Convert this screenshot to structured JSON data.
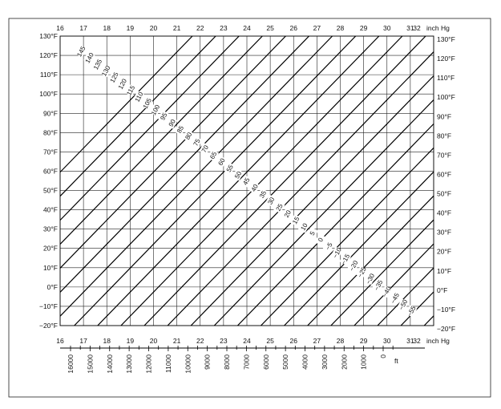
{
  "chart_data": {
    "type": "line",
    "title": "",
    "pressure_axis": {
      "unit": "inch Hg",
      "range": [
        16,
        32
      ],
      "ticks": [
        "16",
        "17",
        "18",
        "19",
        "20",
        "21",
        "22",
        "23",
        "24",
        "25",
        "26",
        "27",
        "28",
        "29",
        "30",
        "31",
        "32"
      ]
    },
    "temperature_axis": {
      "unit": "°F",
      "range": [
        -20,
        130
      ],
      "ticks": [
        "130°F",
        "120°F",
        "110°F",
        "100°F",
        "90°F",
        "80°F",
        "70°F",
        "60°F",
        "50°F",
        "40°F",
        "30°F",
        "20°F",
        "10°F",
        "0°F",
        "−10°F",
        "−20°F"
      ]
    },
    "altitude_axis": {
      "unit": "ft",
      "ticks": [
        "16000",
        "15000",
        "14000",
        "13000",
        "12000",
        "11000",
        "10000",
        "9000",
        "8000",
        "7000",
        "6000",
        "5000",
        "4000",
        "3000",
        "2000",
        "1000",
        "0"
      ]
    },
    "line_labels": [
      "145",
      "140",
      "135",
      "130",
      "125",
      "120",
      "115",
      "110",
      "105",
      "100",
      "95",
      "90",
      "85",
      "80",
      "75",
      "70",
      "65",
      "60",
      "55",
      "50",
      "45",
      "40",
      "35",
      "30",
      "25",
      "20",
      "15",
      "10",
      "5",
      "0",
      "−5",
      "−10",
      "−15",
      "−20",
      "−25",
      "−30",
      "−35",
      "−40",
      "−45",
      "−50",
      "−55"
    ],
    "grid": true
  }
}
